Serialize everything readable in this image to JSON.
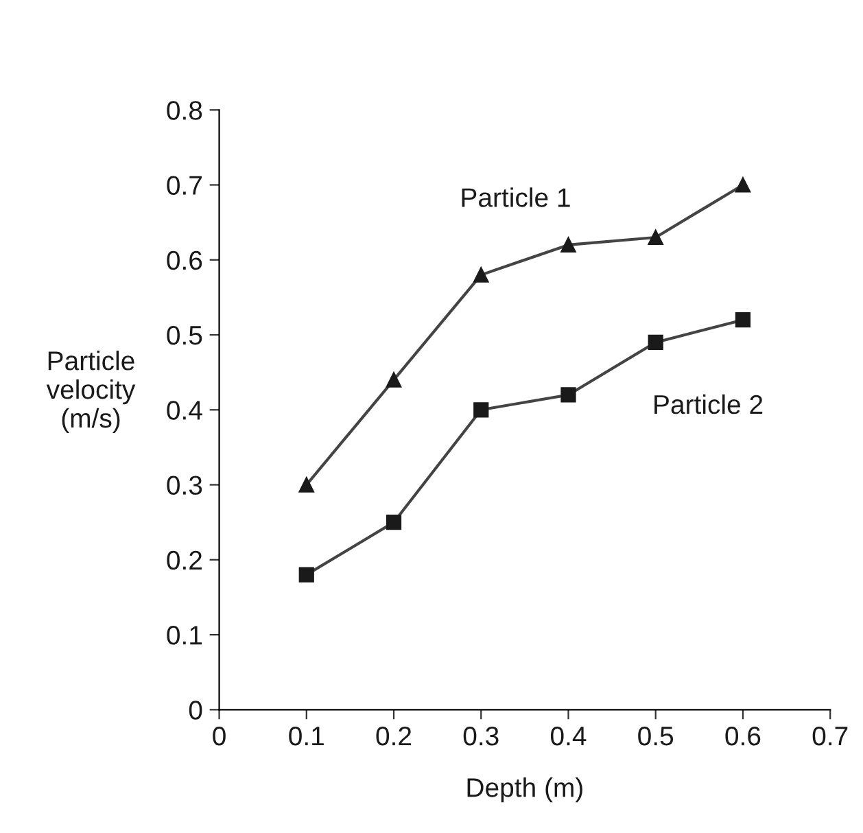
{
  "chart_data": {
    "type": "line",
    "xlabel": "Depth (m)",
    "ylabel": "Particle\nvelocity\n(m/s)",
    "x": [
      0.1,
      0.2,
      0.3,
      0.4,
      0.5,
      0.6
    ],
    "series": [
      {
        "name": "Particle 1",
        "color": "#1a1a1a",
        "marker": "triangle",
        "values": [
          0.3,
          0.44,
          0.58,
          0.62,
          0.63,
          0.7
        ]
      },
      {
        "name": "Particle 2",
        "color": "#1a1a1a",
        "marker": "square",
        "values": [
          0.18,
          0.25,
          0.4,
          0.42,
          0.49,
          0.52
        ]
      }
    ],
    "xlim": [
      0,
      0.7
    ],
    "xticks": [
      0,
      0.1,
      0.2,
      0.3,
      0.4,
      0.5,
      0.6,
      0.7
    ],
    "ylim": [
      0,
      0.8
    ],
    "yticks": [
      0,
      0.1,
      0.2,
      0.3,
      0.4,
      0.5,
      0.6,
      0.7,
      0.8
    ],
    "grid": false,
    "legend": false,
    "line_style": "solid"
  }
}
